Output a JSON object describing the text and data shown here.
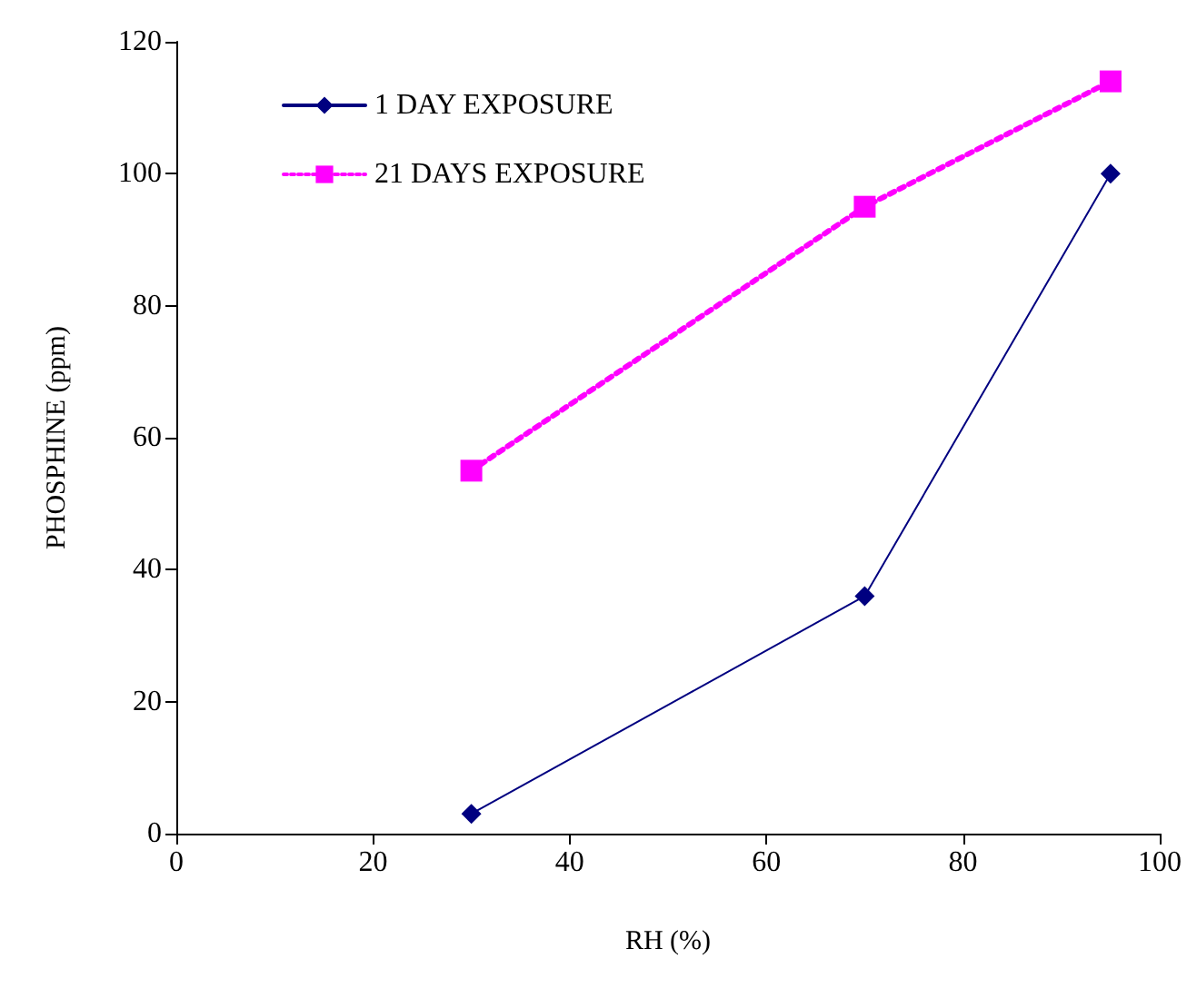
{
  "chart_data": {
    "type": "line",
    "xlabel": "RH (%)",
    "ylabel": "PHOSPHINE (ppm)",
    "x": [
      30,
      70,
      95
    ],
    "series": [
      {
        "name": "1 DAY EXPOSURE",
        "color": "#000080",
        "values": [
          3,
          36,
          100
        ],
        "marker": "diamond",
        "line_style": "solid"
      },
      {
        "name": "21 DAYS EXPOSURE",
        "color": "#ff00ff",
        "values": [
          55,
          95,
          114
        ],
        "marker": "square",
        "line_style": "dotted"
      }
    ],
    "xlim": [
      0,
      100
    ],
    "xticks": [
      0,
      20,
      40,
      60,
      80,
      100
    ],
    "ylim": [
      0,
      120
    ],
    "yticks": [
      0,
      20,
      40,
      60,
      80,
      100,
      120
    ],
    "grid": false,
    "legend": "top left"
  }
}
